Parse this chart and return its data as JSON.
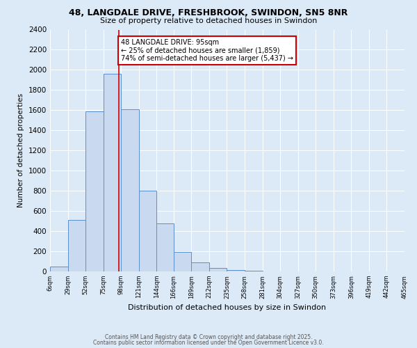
{
  "title1": "48, LANGDALE DRIVE, FRESHBROOK, SWINDON, SN5 8NR",
  "title2": "Size of property relative to detached houses in Swindon",
  "xlabel": "Distribution of detached houses by size in Swindon",
  "ylabel": "Number of detached properties",
  "bin_edges": [
    6,
    29,
    52,
    75,
    98,
    121,
    144,
    166,
    189,
    212,
    235,
    258,
    281,
    304,
    327,
    350,
    373,
    396,
    419,
    442,
    465
  ],
  "bar_heights": [
    50,
    510,
    1590,
    1960,
    1610,
    800,
    480,
    190,
    90,
    35,
    15,
    5,
    2,
    1,
    0,
    0,
    0,
    1,
    0,
    0
  ],
  "bar_face_color": "#c9d9f0",
  "bar_edge_color": "#5b8fce",
  "background_color": "#dce9f7",
  "plot_bg_color": "#dce9f7",
  "vline_x": 95,
  "vline_color": "#cc0000",
  "annotation_title": "48 LANGDALE DRIVE: 95sqm",
  "annotation_line1": "← 25% of detached houses are smaller (1,859)",
  "annotation_line2": "74% of semi-detached houses are larger (5,437) →",
  "annotation_box_edge": "#cc0000",
  "yticks": [
    0,
    200,
    400,
    600,
    800,
    1000,
    1200,
    1400,
    1600,
    1800,
    2000,
    2200,
    2400
  ],
  "xtick_labels": [
    "6sqm",
    "29sqm",
    "52sqm",
    "75sqm",
    "98sqm",
    "121sqm",
    "144sqm",
    "166sqm",
    "189sqm",
    "212sqm",
    "235sqm",
    "258sqm",
    "281sqm",
    "304sqm",
    "327sqm",
    "350sqm",
    "373sqm",
    "396sqm",
    "419sqm",
    "442sqm",
    "465sqm"
  ],
  "footer1": "Contains HM Land Registry data © Crown copyright and database right 2025.",
  "footer2": "Contains public sector information licensed under the Open Government Licence v3.0."
}
